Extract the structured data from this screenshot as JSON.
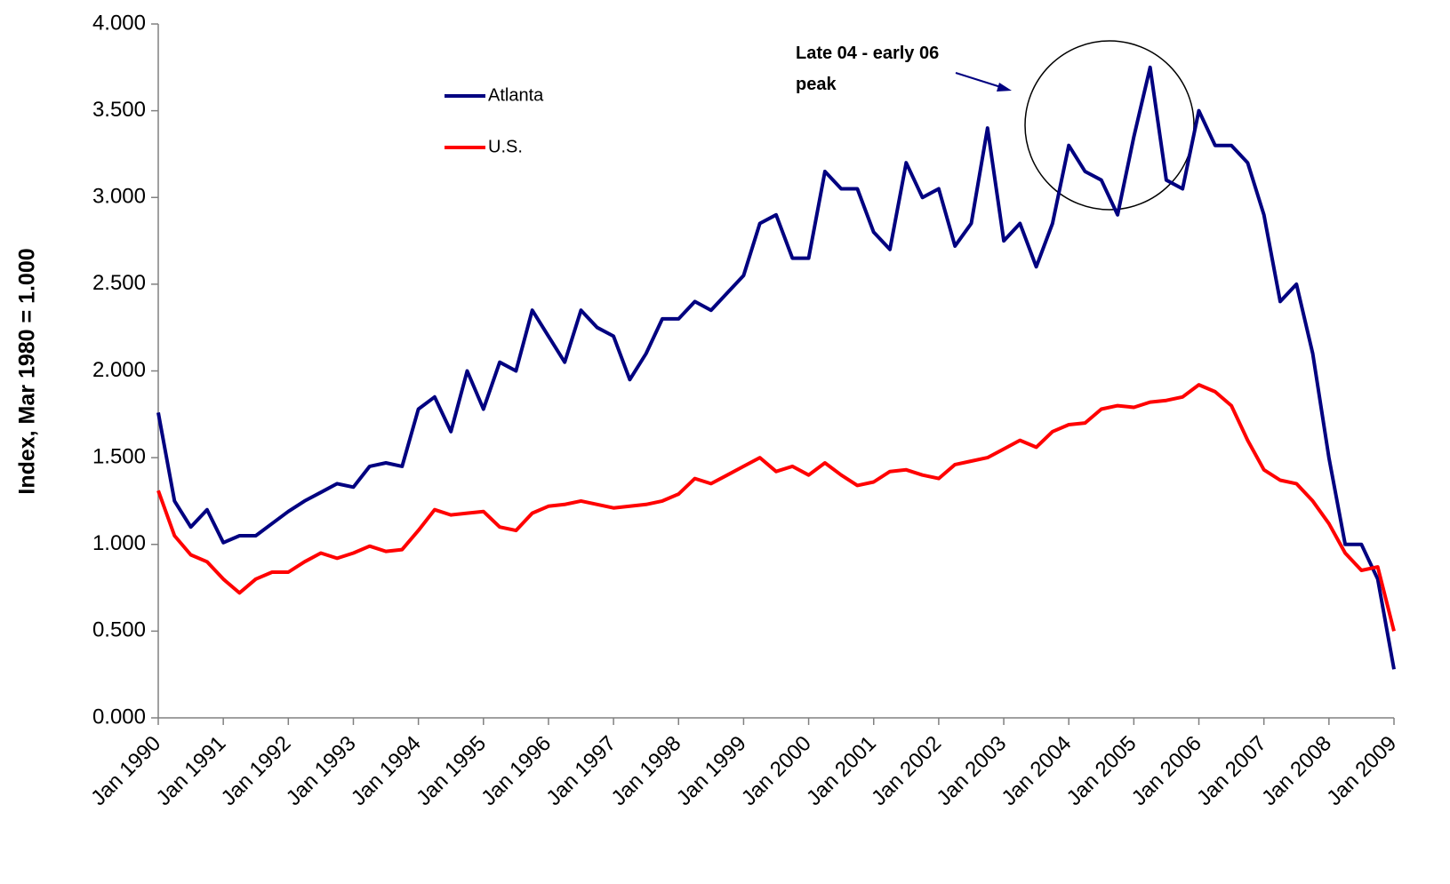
{
  "chart_data": {
    "type": "line",
    "y_label": "Index, Mar 1980 = 1.000",
    "annotation": [
      "Late 04 - early 06",
      "peak"
    ],
    "legend": "upper left",
    "categories": [
      "Jan 1990",
      null,
      null,
      null,
      "Jan 1991",
      null,
      null,
      null,
      "Jan 1992",
      null,
      null,
      null,
      "Jan 1993",
      null,
      null,
      null,
      "Jan 1994",
      null,
      null,
      null,
      "Jan 1995",
      null,
      null,
      null,
      "Jan 1996",
      null,
      null,
      null,
      "Jan 1997",
      null,
      null,
      null,
      "Jan 1998",
      null,
      null,
      null,
      "Jan 1999",
      null,
      null,
      null,
      "Jan 2000",
      null,
      null,
      null,
      "Jan 2001",
      null,
      null,
      null,
      "Jan 2002",
      null,
      null,
      null,
      "Jan 2003",
      null,
      null,
      null,
      "Jan 2004",
      null,
      null,
      null,
      "Jan 2005",
      null,
      null,
      null,
      "Jan 2006",
      null,
      null,
      null,
      "Jan 2007",
      null,
      null,
      null,
      "Jan 2008",
      null,
      null,
      null,
      "Jan 2009"
    ],
    "series": [
      {
        "name": "Atlanta",
        "color": "#000080",
        "values": [
          1.76,
          1.25,
          1.1,
          1.2,
          1.01,
          1.05,
          1.05,
          1.12,
          1.19,
          1.25,
          1.3,
          1.35,
          1.33,
          1.45,
          1.47,
          1.45,
          1.78,
          1.85,
          1.65,
          2.0,
          1.78,
          2.05,
          2.0,
          2.35,
          2.2,
          2.05,
          2.35,
          2.25,
          2.2,
          1.95,
          2.1,
          2.3,
          2.3,
          2.4,
          2.35,
          2.45,
          2.55,
          2.85,
          2.9,
          2.65,
          2.65,
          3.15,
          3.05,
          3.05,
          2.8,
          2.7,
          3.2,
          3.0,
          3.05,
          2.72,
          2.85,
          3.4,
          2.75,
          2.85,
          2.6,
          2.85,
          3.3,
          3.15,
          3.1,
          2.9,
          3.35,
          3.75,
          3.1,
          3.05,
          3.5,
          3.3,
          3.3,
          3.2,
          2.9,
          2.4,
          2.5,
          2.1,
          1.5,
          1.0,
          1.0,
          0.8,
          0.28
        ]
      },
      {
        "name": "U.S.",
        "color": "#ff0000",
        "values": [
          1.31,
          1.05,
          0.94,
          0.9,
          0.8,
          0.72,
          0.8,
          0.84,
          0.84,
          0.9,
          0.95,
          0.92,
          0.95,
          0.99,
          0.96,
          0.97,
          1.08,
          1.2,
          1.17,
          1.18,
          1.19,
          1.1,
          1.08,
          1.18,
          1.22,
          1.23,
          1.25,
          1.23,
          1.21,
          1.22,
          1.23,
          1.25,
          1.29,
          1.38,
          1.35,
          1.4,
          1.45,
          1.5,
          1.42,
          1.45,
          1.4,
          1.47,
          1.4,
          1.34,
          1.36,
          1.42,
          1.43,
          1.4,
          1.38,
          1.46,
          1.48,
          1.5,
          1.55,
          1.6,
          1.56,
          1.65,
          1.69,
          1.7,
          1.78,
          1.8,
          1.79,
          1.82,
          1.83,
          1.85,
          1.92,
          1.88,
          1.8,
          1.6,
          1.43,
          1.37,
          1.35,
          1.25,
          1.12,
          0.95,
          0.85,
          0.87,
          0.5
        ]
      }
    ],
    "ylim": [
      0,
      4
    ],
    "yticks": [
      {
        "value": 0,
        "label": "0.000"
      },
      {
        "value": 0.5,
        "label": "0.500"
      },
      {
        "value": 1,
        "label": "1.000"
      },
      {
        "value": 1.5,
        "label": "1.500"
      },
      {
        "value": 2,
        "label": "2.000"
      },
      {
        "value": 2.5,
        "label": "2.500"
      },
      {
        "value": 3,
        "label": "3.000"
      },
      {
        "value": 3.5,
        "label": "3.500"
      },
      {
        "value": 4,
        "label": "4.000"
      }
    ]
  }
}
